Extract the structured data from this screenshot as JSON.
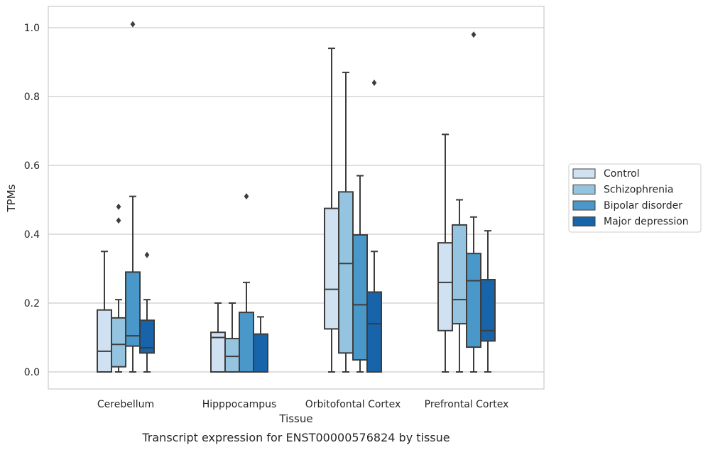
{
  "chart_data": {
    "type": "boxplot",
    "xlabel": "Tissue",
    "ylabel": "TPMs",
    "caption": "Transcript expression for ENST00000576824 by tissue",
    "ylim": [
      -0.05,
      1.06
    ],
    "yticks": [
      "0.0",
      "0.2",
      "0.4",
      "0.6",
      "0.8",
      "1.0"
    ],
    "ytick_values": [
      0.0,
      0.2,
      0.4,
      0.6,
      0.8,
      1.0
    ],
    "grid": "horizontal",
    "legend_position": "right",
    "categories": [
      "Cerebellum",
      "Hipppocampus",
      "Orbitofontal Cortex",
      "Prefrontal Cortex"
    ],
    "series": [
      {
        "name": "Control",
        "color": "#d0e1f2",
        "boxes": [
          {
            "whislo": 0.0,
            "q1": 0.0,
            "med": 0.06,
            "q3": 0.18,
            "whishi": 0.35,
            "fliers": []
          },
          {
            "whislo": 0.0,
            "q1": 0.0,
            "med": 0.1,
            "q3": 0.115,
            "whishi": 0.2,
            "fliers": []
          },
          {
            "whislo": 0.0,
            "q1": 0.125,
            "med": 0.24,
            "q3": 0.475,
            "whishi": 0.94,
            "fliers": []
          },
          {
            "whislo": 0.0,
            "q1": 0.12,
            "med": 0.26,
            "q3": 0.375,
            "whishi": 0.69,
            "fliers": []
          }
        ]
      },
      {
        "name": "Schizophrenia",
        "color": "#94c4df",
        "boxes": [
          {
            "whislo": 0.0,
            "q1": 0.015,
            "med": 0.08,
            "q3": 0.157,
            "whishi": 0.21,
            "fliers": [
              0.44,
              0.48
            ]
          },
          {
            "whislo": 0.0,
            "q1": 0.0,
            "med": 0.045,
            "q3": 0.097,
            "whishi": 0.2,
            "fliers": []
          },
          {
            "whislo": 0.0,
            "q1": 0.055,
            "med": 0.315,
            "q3": 0.523,
            "whishi": 0.87,
            "fliers": []
          },
          {
            "whislo": 0.0,
            "q1": 0.14,
            "med": 0.21,
            "q3": 0.427,
            "whishi": 0.5,
            "fliers": []
          }
        ]
      },
      {
        "name": "Bipolar disorder",
        "color": "#4a98c9",
        "boxes": [
          {
            "whislo": 0.0,
            "q1": 0.075,
            "med": 0.105,
            "q3": 0.29,
            "whishi": 0.51,
            "fliers": [
              1.01
            ]
          },
          {
            "whislo": 0.0,
            "q1": 0.0,
            "med": 0.0,
            "q3": 0.173,
            "whishi": 0.26,
            "fliers": [
              0.51
            ]
          },
          {
            "whislo": 0.0,
            "q1": 0.035,
            "med": 0.195,
            "q3": 0.398,
            "whishi": 0.57,
            "fliers": []
          },
          {
            "whislo": 0.0,
            "q1": 0.072,
            "med": 0.265,
            "q3": 0.344,
            "whishi": 0.45,
            "fliers": [
              0.98
            ]
          }
        ]
      },
      {
        "name": "Major depression",
        "color": "#1764ab",
        "boxes": [
          {
            "whislo": 0.0,
            "q1": 0.055,
            "med": 0.07,
            "q3": 0.15,
            "whishi": 0.21,
            "fliers": [
              0.34
            ]
          },
          {
            "whislo": 0.0,
            "q1": 0.0,
            "med": 0.0,
            "q3": 0.11,
            "whishi": 0.16,
            "fliers": []
          },
          {
            "whislo": 0.0,
            "q1": 0.0,
            "med": 0.14,
            "q3": 0.232,
            "whishi": 0.35,
            "fliers": [
              0.84
            ]
          },
          {
            "whislo": 0.0,
            "q1": 0.09,
            "med": 0.12,
            "q3": 0.268,
            "whishi": 0.41,
            "fliers": []
          }
        ]
      }
    ]
  }
}
